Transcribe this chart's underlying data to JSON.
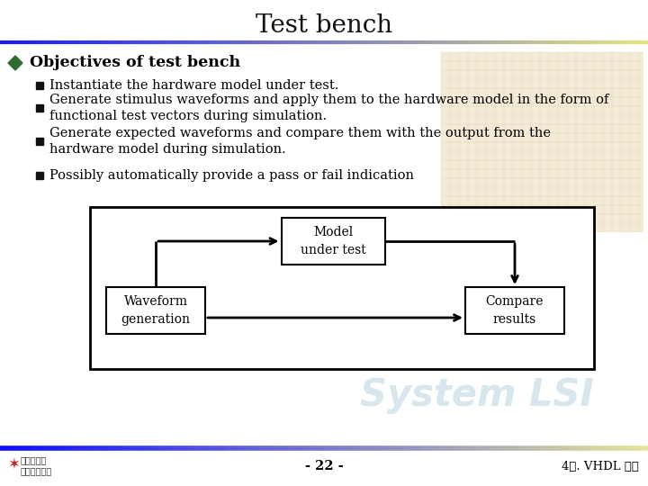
{
  "title": "Test bench",
  "title_fontsize": 20,
  "bg_color": "#ffffff",
  "bullet_main": "Objectives of test bench",
  "bullet_main_fontsize": 12.5,
  "bullets": [
    "Instantiate the hardware model under test.",
    "Generate stimulus waveforms and apply them to the hardware model in the form of\nfunctional test vectors during simulation.",
    "Generate expected waveforms and compare them with the output from the\nhardware model during simulation.",
    "Possibly automatically provide a pass or fail indication"
  ],
  "bullet_fontsize": 10.5,
  "diagram_labels": [
    "Model\nunder test",
    "Waveform\ngeneration",
    "Compare\nresults"
  ],
  "diagram_label_fontsize": 10,
  "footer_text_center": "- 22 -",
  "footer_text_right": "4장. VHDL 개요",
  "footer_fontsize": 9.5,
  "system_lsi_text": "System LSI",
  "diamond_color": "#2e6b2e"
}
